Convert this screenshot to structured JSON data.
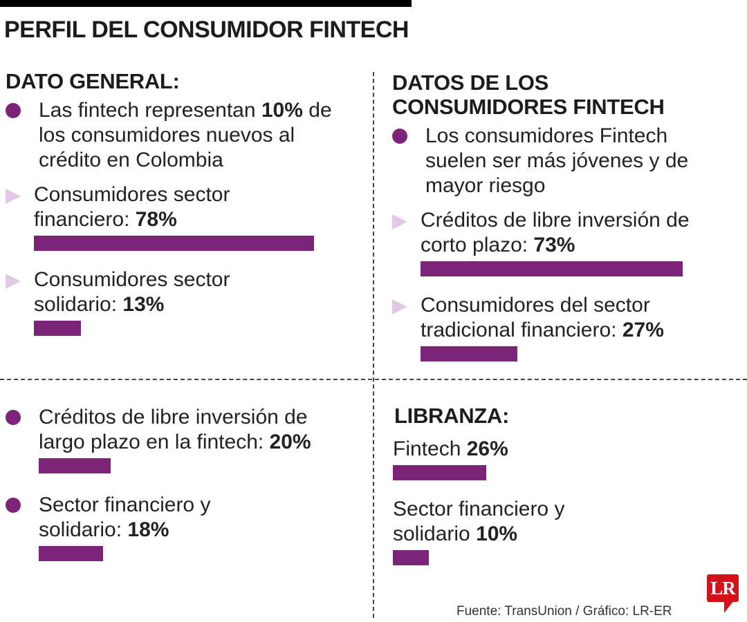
{
  "title": "PERFIL DEL CONSUMIDOR FINTECH",
  "colors": {
    "bar": "#7c2478",
    "dot": "#7c2478",
    "triangle": "#e4c6e8",
    "logo": "#d4111a"
  },
  "sections": {
    "general": {
      "heading": "DATO GENERAL:",
      "bullet": {
        "prefix": "Las fintech representan ",
        "value": "10%",
        "suffix": " de los consumidores nuevos al crédito en Colombia"
      },
      "items": [
        {
          "label": "Consumidores sector financiero: ",
          "value": "78%"
        },
        {
          "label": "Consumidores sector solidario: ",
          "value": "13%"
        }
      ]
    },
    "consumers": {
      "heading_lines": [
        "DATOS DE LOS",
        "CONSUMIDORES FINTECH"
      ],
      "bullet": "Los consumidores Fintech suelen ser más jóvenes y de mayor riesgo",
      "items": [
        {
          "label": "Créditos de libre inversión de corto plazo: ",
          "value": "73%"
        },
        {
          "label": "Consumidores del sector tradicional financiero: ",
          "value": "27%"
        }
      ]
    },
    "credits": {
      "items": [
        {
          "label": "Créditos de libre inversión de largo plazo en la fintech: ",
          "value": "20%"
        },
        {
          "label": "Sector financiero y solidario: ",
          "value": "18%"
        }
      ]
    },
    "libranza": {
      "heading": "LIBRANZA:",
      "items": [
        {
          "label": "Fintech ",
          "value": "26%"
        },
        {
          "label": "Sector financiero y solidario ",
          "value": "10%"
        }
      ]
    }
  },
  "source": "Fuente: TransUnion / Gráfico: LR-ER",
  "logo_text": "LR",
  "chart_data": {
    "type": "bar",
    "title": "PERFIL DEL CONSUMIDOR FINTECH",
    "unit": "%",
    "groups": [
      {
        "categories": [
          "Consumidores sector financiero",
          "Consumidores sector solidario"
        ],
        "values": [
          78,
          13
        ]
      },
      {
        "categories": [
          "Créditos de libre inversión de corto plazo",
          "Consumidores del sector tradicional financiero"
        ],
        "values": [
          73,
          27
        ]
      },
      {
        "categories": [
          "Créditos de libre inversión de largo plazo en la fintech",
          "Sector financiero y solidario"
        ],
        "values": [
          20,
          18
        ]
      },
      {
        "categories": [
          "Fintech",
          "Sector financiero y solidario"
        ],
        "values": [
          26,
          10
        ]
      }
    ]
  }
}
